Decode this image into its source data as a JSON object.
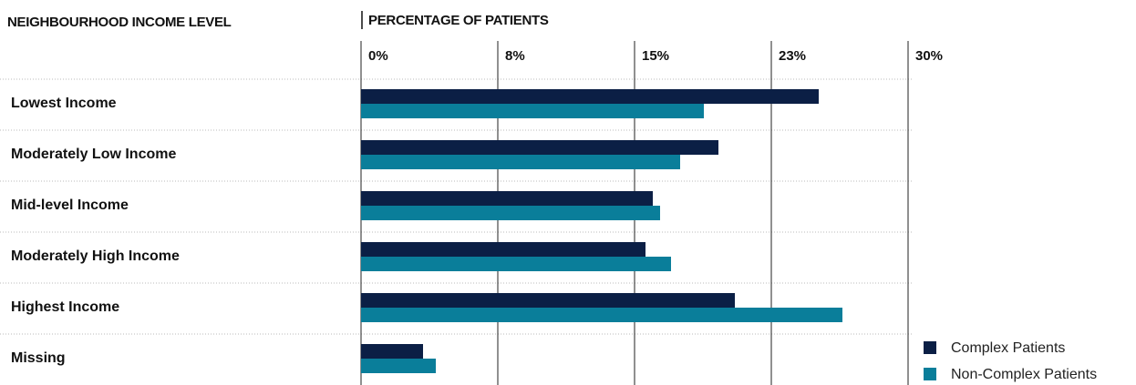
{
  "chart_data": {
    "type": "bar",
    "orientation": "horizontal",
    "y_axis_title": "NEIGHBOURHOOD INCOME LEVEL",
    "x_axis_title": "PERCENTAGE OF PATIENTS",
    "categories": [
      "Lowest Income",
      "Moderately Low Income",
      "Mid-level Income",
      "Moderately High Income",
      "Highest Income",
      "Missing"
    ],
    "series": [
      {
        "name": "Complex Patients",
        "color": "#0b1f45",
        "values": [
          25.1,
          19.6,
          16.0,
          15.6,
          20.5,
          3.4
        ]
      },
      {
        "name": "Non-Complex Patients",
        "color": "#0a7e9a",
        "values": [
          18.8,
          17.5,
          16.4,
          17.0,
          26.4,
          4.1
        ]
      }
    ],
    "xlim": [
      0,
      30
    ],
    "xticks": [
      {
        "value": 0,
        "label": "0%"
      },
      {
        "value": 7.5,
        "label": "8%"
      },
      {
        "value": 15,
        "label": "15%"
      },
      {
        "value": 22.5,
        "label": "23%"
      },
      {
        "value": 30,
        "label": "30%"
      }
    ],
    "grid": true,
    "legend": "bottom-right"
  }
}
